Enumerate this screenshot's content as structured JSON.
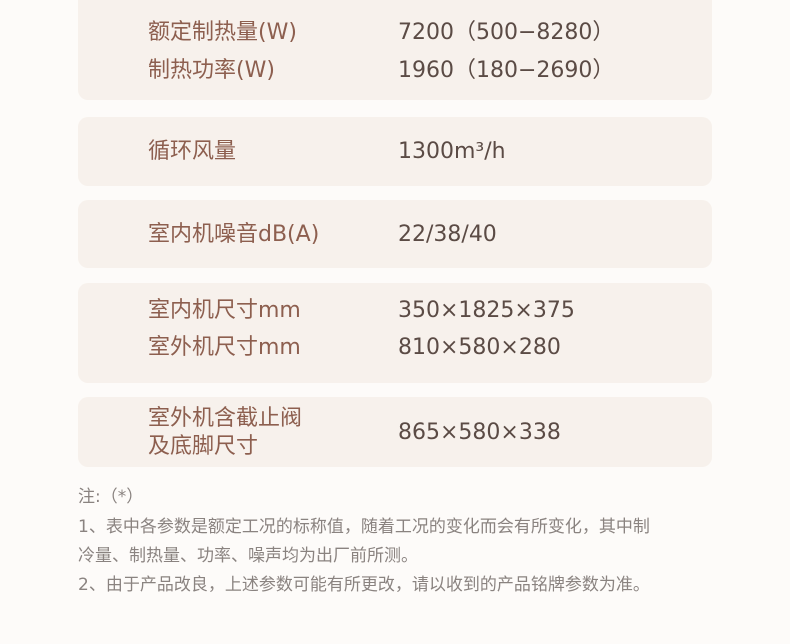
{
  "table": {
    "cards": [
      {
        "rows": [
          {
            "label": [
              "额定制热量(W)"
            ],
            "value": "7200（500−8280）"
          },
          {
            "label": [
              "制热功率(W)"
            ],
            "value": "1960（180−2690）"
          }
        ]
      },
      {
        "rows": [
          {
            "label": [
              "循环风量"
            ],
            "value": "1300m³/h"
          }
        ]
      },
      {
        "rows": [
          {
            "label": [
              "室内机噪音dB(A)"
            ],
            "value": "22/38/40"
          }
        ]
      },
      {
        "rows": [
          {
            "label": [
              "室内机尺寸mm"
            ],
            "value": "350×1825×375"
          },
          {
            "label": [
              "室外机尺寸mm"
            ],
            "value": "810×580×280"
          }
        ]
      },
      {
        "rows": [
          {
            "label": [
              "室外机含截止阀",
              "及底脚尺寸"
            ],
            "value": "865×580×338"
          }
        ]
      }
    ]
  },
  "notes": {
    "title": "注:（*）",
    "lines": [
      "1、表中各参数是额定工况的标称值，随着工况的变化而会有所变化，其中制",
      "冷量、制热量、功率、噪声均为出厂前所测。",
      "2、由于产品改良，上述参数可能有所更改，请以收到的产品铭牌参数为准。"
    ]
  }
}
